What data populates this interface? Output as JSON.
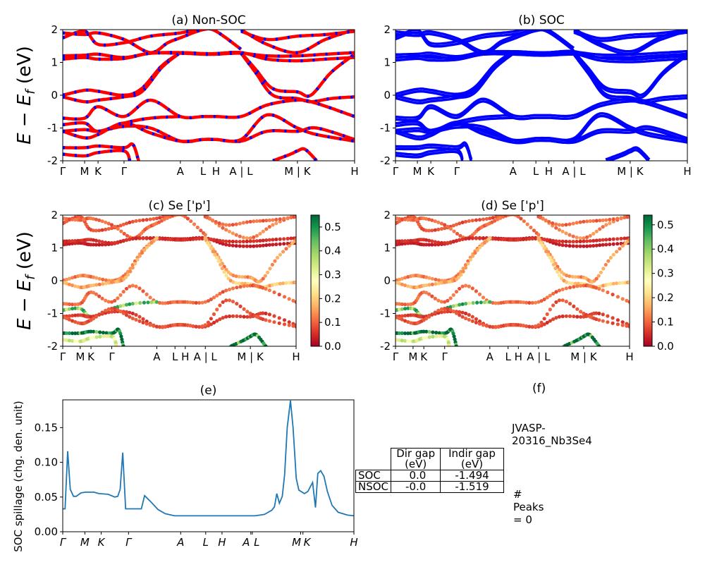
{
  "chart_data": [
    {
      "id": "a",
      "type": "line",
      "title": "(a) Non-SOC",
      "ylabel_main": "E − E",
      "ylabel_sub": "f",
      "ylabel_unit": " (eV)",
      "ylim": [
        -2,
        2
      ],
      "yticks": [
        -2,
        -1,
        0,
        1,
        2
      ],
      "xticks": [
        {
          "label": "Γ",
          "k": 0
        },
        {
          "label": "M",
          "k": 0.075
        },
        {
          "label": "K",
          "k": 0.121
        },
        {
          "label": "Γ",
          "k": 0.21
        },
        {
          "label": "A",
          "k": 0.403
        },
        {
          "label": "L",
          "k": 0.481
        },
        {
          "label": "H",
          "k": 0.525
        },
        {
          "label": "A | L",
          "k": 0.611
        },
        {
          "label": "M | K",
          "k": 0.804
        },
        {
          "label": "H",
          "k": 1
        }
      ],
      "colors": {
        "line": "#ff0000",
        "dash": "#0000ff"
      }
    },
    {
      "id": "b",
      "type": "line",
      "title": "(b) SOC",
      "ylim": [
        -2,
        2
      ],
      "yticks": [
        -2,
        -1,
        0,
        1,
        2
      ],
      "xticks": "same-as-a",
      "colors": {
        "line": "#0000ff"
      }
    },
    {
      "id": "c",
      "type": "scatter",
      "title": "(c)  Se ['p']",
      "ylabel_main": "E − E",
      "ylabel_sub": "f",
      "ylabel_unit": " (eV)",
      "ylim": [
        -2,
        2
      ],
      "yticks": [
        -2,
        -1,
        0,
        1,
        2
      ],
      "xticks": "same-as-a",
      "colorbar": {
        "cmap": "RdYlGn",
        "range": [
          0,
          0.55
        ],
        "ticks": [
          "0.0",
          "0.1",
          "0.2",
          "0.3",
          "0.4",
          "0.5"
        ]
      }
    },
    {
      "id": "d",
      "type": "scatter",
      "title": "(d) Se ['p']",
      "ylim": [
        -2,
        2
      ],
      "yticks": [
        -2,
        -1,
        0,
        1,
        2
      ],
      "xticks": "same-as-a",
      "colorbar": {
        "cmap": "RdYlGn",
        "range": [
          0,
          0.54
        ],
        "ticks": [
          "0.0",
          "0.1",
          "0.2",
          "0.3",
          "0.4",
          "0.5"
        ]
      }
    },
    {
      "id": "e",
      "type": "line",
      "title": "(e)",
      "ylabel": "SOC spillage (chg. den. unit)",
      "ylim": [
        0,
        0.19
      ],
      "yticks": [
        "0.00",
        "0.05",
        "0.10",
        "0.15"
      ],
      "color": "#1f77b4",
      "xticks": [
        {
          "label": "Γ",
          "k": 0
        },
        {
          "label": "M",
          "k": 0.076
        },
        {
          "label": "K",
          "k": 0.132
        },
        {
          "label": "Γ",
          "k": 0.226
        },
        {
          "label": "A",
          "k": 0.405
        },
        {
          "label": "L",
          "k": 0.491
        },
        {
          "label": "H",
          "k": 0.547
        },
        {
          "label": "A",
          "k": 0.646
        },
        {
          "label": "L",
          "k": 0.651
        },
        {
          "label": "M",
          "k": 0.817
        },
        {
          "label": "K",
          "k": 0.825
        },
        {
          "label": "H",
          "k": 1
        }
      ],
      "points": [
        [
          0,
          0.033
        ],
        [
          0.008,
          0.033
        ],
        [
          0.017,
          0.116
        ],
        [
          0.026,
          0.061
        ],
        [
          0.037,
          0.051
        ],
        [
          0.046,
          0.051
        ],
        [
          0.063,
          0.056
        ],
        [
          0.079,
          0.057
        ],
        [
          0.107,
          0.057
        ],
        [
          0.124,
          0.055
        ],
        [
          0.156,
          0.054
        ],
        [
          0.179,
          0.05
        ],
        [
          0.189,
          0.051
        ],
        [
          0.197,
          0.061
        ],
        [
          0.206,
          0.114
        ],
        [
          0.216,
          0.033
        ],
        [
          0.27,
          0.033
        ],
        [
          0.281,
          0.052
        ],
        [
          0.303,
          0.043
        ],
        [
          0.327,
          0.032
        ],
        [
          0.352,
          0.026
        ],
        [
          0.384,
          0.023
        ],
        [
          0.661,
          0.023
        ],
        [
          0.693,
          0.025
        ],
        [
          0.718,
          0.031
        ],
        [
          0.727,
          0.036
        ],
        [
          0.735,
          0.055
        ],
        [
          0.744,
          0.041
        ],
        [
          0.754,
          0.051
        ],
        [
          0.762,
          0.082
        ],
        [
          0.771,
          0.15
        ],
        [
          0.782,
          0.189
        ],
        [
          0.791,
          0.15
        ],
        [
          0.802,
          0.077
        ],
        [
          0.811,
          0.06
        ],
        [
          0.83,
          0.055
        ],
        [
          0.842,
          0.058
        ],
        [
          0.858,
          0.071
        ],
        [
          0.868,
          0.035
        ],
        [
          0.876,
          0.084
        ],
        [
          0.886,
          0.088
        ],
        [
          0.897,
          0.08
        ],
        [
          0.909,
          0.058
        ],
        [
          0.925,
          0.038
        ],
        [
          0.946,
          0.028
        ],
        [
          0.978,
          0.024
        ],
        [
          1,
          0.023
        ]
      ]
    }
  ],
  "bands": [
    {
      "w": 0.08,
      "pts": [
        [
          0,
          1.75
        ],
        [
          0.075,
          1.95
        ],
        [
          0.121,
          1.55
        ],
        [
          0.21,
          1.6
        ],
        [
          0.3,
          1.8
        ],
        [
          0.403,
          1.9
        ],
        [
          0.481,
          2.05
        ]
      ]
    },
    {
      "w": 0.1,
      "pts": [
        [
          0,
          1.9
        ],
        [
          0.075,
          1.85
        ],
        [
          0.121,
          1.9
        ],
        [
          0.21,
          1.7
        ],
        [
          0.3,
          1.3
        ],
        [
          0.36,
          1.6
        ],
        [
          0.403,
          1.75
        ],
        [
          0.481,
          2.0
        ],
        [
          0.525,
          1.95
        ],
        [
          0.611,
          1.4
        ]
      ]
    },
    {
      "w": 0.12,
      "pts": [
        [
          0.611,
          2.0
        ],
        [
          0.7,
          1.55
        ],
        [
          0.804,
          1.3
        ],
        [
          0.9,
          1.7
        ],
        [
          1,
          2.0
        ]
      ]
    },
    {
      "w": 0.1,
      "pts": [
        [
          0.611,
          1.95
        ],
        [
          0.7,
          1.7
        ],
        [
          0.804,
          1.8
        ],
        [
          0.9,
          1.85
        ],
        [
          1,
          1.95
        ]
      ]
    },
    {
      "w": 0.03,
      "pts": [
        [
          0,
          1.1
        ],
        [
          0.075,
          1.15
        ],
        [
          0.121,
          1.1
        ],
        [
          0.21,
          1.12
        ],
        [
          0.3,
          1.28
        ],
        [
          0.403,
          1.3
        ],
        [
          0.481,
          1.27
        ],
        [
          0.525,
          1.27
        ],
        [
          0.611,
          1.3
        ],
        [
          0.7,
          1.1
        ],
        [
          0.804,
          1.05
        ],
        [
          0.9,
          1.1
        ],
        [
          1,
          1.15
        ]
      ]
    },
    {
      "w": 0.05,
      "pts": [
        [
          0,
          1.2
        ],
        [
          0.075,
          1.22
        ],
        [
          0.121,
          1.25
        ],
        [
          0.21,
          1.15
        ],
        [
          0.3,
          1.28
        ],
        [
          0.403,
          1.28
        ],
        [
          0.481,
          1.25
        ],
        [
          0.525,
          1.25
        ],
        [
          0.611,
          1.28
        ],
        [
          0.7,
          1.2
        ],
        [
          0.804,
          1.2
        ],
        [
          0.9,
          1.25
        ],
        [
          1,
          1.3
        ]
      ]
    },
    {
      "w": 0.12,
      "pts": [
        [
          0,
          0.0
        ],
        [
          0.075,
          0.15
        ],
        [
          0.121,
          0.12
        ],
        [
          0.21,
          0.0
        ],
        [
          0.27,
          0.2
        ],
        [
          0.34,
          0.9
        ],
        [
          0.403,
          1.3
        ]
      ]
    },
    {
      "w": 0.15,
      "pts": [
        [
          0,
          -0.05
        ],
        [
          0.075,
          -0.2
        ],
        [
          0.121,
          -0.15
        ],
        [
          0.21,
          -0.05
        ],
        [
          0.27,
          0.1
        ],
        [
          0.34,
          0.85
        ],
        [
          0.403,
          1.3
        ]
      ]
    },
    {
      "w": 0.14,
      "pts": [
        [
          0.611,
          1.3
        ],
        [
          0.66,
          0.8
        ],
        [
          0.72,
          0.2
        ],
        [
          0.804,
          0.1
        ],
        [
          0.85,
          0.0
        ],
        [
          0.92,
          0.7
        ],
        [
          1,
          1.25
        ]
      ]
    },
    {
      "w": 0.18,
      "pts": [
        [
          0.611,
          1.28
        ],
        [
          0.66,
          0.7
        ],
        [
          0.72,
          0.0
        ],
        [
          0.804,
          -0.1
        ],
        [
          0.85,
          -0.2
        ],
        [
          0.92,
          -0.1
        ],
        [
          1,
          -0.05
        ]
      ]
    },
    {
      "w": 0.1,
      "pts": [
        [
          0,
          -0.7
        ],
        [
          0.075,
          -0.7
        ],
        [
          0.121,
          -0.35
        ],
        [
          0.21,
          -0.65
        ],
        [
          0.3,
          -0.15
        ],
        [
          0.403,
          -0.65
        ],
        [
          0.481,
          -0.65
        ],
        [
          0.525,
          -0.65
        ],
        [
          0.611,
          -0.65
        ],
        [
          0.7,
          -0.3
        ],
        [
          0.804,
          -0.15
        ],
        [
          0.87,
          -0.25
        ],
        [
          1,
          -0.65
        ]
      ]
    },
    {
      "w": 0.4,
      "pts": [
        [
          0,
          -0.9
        ],
        [
          0.075,
          -0.85
        ],
        [
          0.121,
          -1.1
        ],
        [
          0.21,
          -0.85
        ],
        [
          0.3,
          -0.7
        ],
        [
          0.403,
          -0.65
        ]
      ]
    },
    {
      "w": 0.06,
      "pts": [
        [
          0,
          -1.1
        ],
        [
          0.075,
          -1.05
        ],
        [
          0.121,
          -1.1
        ],
        [
          0.21,
          -0.95
        ],
        [
          0.3,
          -1.0
        ],
        [
          0.403,
          -1.4
        ],
        [
          0.481,
          -1.35
        ],
        [
          0.525,
          -1.35
        ],
        [
          0.611,
          -1.4
        ],
        [
          0.7,
          -1.1
        ],
        [
          0.804,
          -1.1
        ],
        [
          0.87,
          -1.0
        ],
        [
          1,
          -1.35
        ]
      ]
    },
    {
      "w": 0.08,
      "pts": [
        [
          0,
          -1.1
        ],
        [
          0.075,
          -1.3
        ],
        [
          0.121,
          -1.2
        ],
        [
          0.21,
          -0.85
        ],
        [
          0.3,
          -1.15
        ],
        [
          0.403,
          -1.4
        ],
        [
          0.481,
          -1.35
        ],
        [
          0.525,
          -1.35
        ],
        [
          0.611,
          -1.35
        ],
        [
          0.7,
          -0.6
        ],
        [
          0.804,
          -1.0
        ],
        [
          0.87,
          -1.2
        ],
        [
          1,
          -1.4
        ]
      ]
    },
    {
      "w": 0.52,
      "pts": [
        [
          0,
          -1.6
        ],
        [
          0.075,
          -1.6
        ],
        [
          0.121,
          -1.55
        ],
        [
          0.21,
          -1.6
        ],
        [
          0.24,
          -1.5
        ],
        [
          0.26,
          -2.0
        ]
      ]
    },
    {
      "w": 0.3,
      "pts": [
        [
          0,
          -1.8
        ],
        [
          0.075,
          -1.85
        ],
        [
          0.121,
          -1.75
        ],
        [
          0.21,
          -1.7
        ],
        [
          0.23,
          -2.0
        ]
      ]
    },
    {
      "w": 0.5,
      "pts": [
        [
          0.72,
          -2.0
        ],
        [
          0.78,
          -1.8
        ],
        [
          0.804,
          -1.7
        ],
        [
          0.83,
          -1.65
        ],
        [
          0.87,
          -2.0
        ]
      ]
    }
  ],
  "panel_f": {
    "title": "(f)",
    "material": "JVASP-20316_Nb3Se4",
    "table": {
      "columns": [
        "Dir gap (eV)",
        "Indir gap (eV)"
      ],
      "rows": [
        {
          "label": "SOC",
          "values": [
            "0.0",
            "-1.494"
          ]
        },
        {
          "label": "NSOC",
          "values": [
            "-0.0",
            "-1.519"
          ]
        }
      ]
    },
    "peaks": "# Peaks = 0"
  }
}
